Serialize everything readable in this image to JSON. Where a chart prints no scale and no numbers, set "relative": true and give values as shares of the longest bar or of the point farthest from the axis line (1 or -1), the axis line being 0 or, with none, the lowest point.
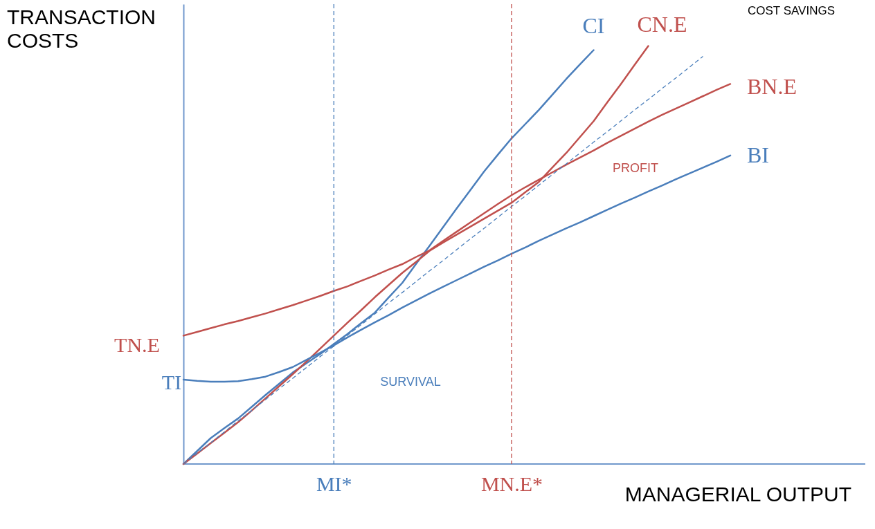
{
  "chart_data": {
    "type": "line",
    "relative": true,
    "xlabel": "MANAGERIAL OUTPUT",
    "ylabel": "TRANSACTION COSTS",
    "tick_labels": "x",
    "grid": false,
    "categories": [
      null,
      null,
      null,
      null,
      null,
      null,
      null,
      null,
      null,
      null,
      null,
      "MI*",
      null,
      null,
      null,
      null,
      null,
      null,
      null,
      null,
      null,
      null,
      null,
      null,
      "MN.E*",
      null,
      null,
      null,
      null,
      null,
      null,
      null,
      null,
      null,
      null,
      null,
      null,
      null,
      null,
      null,
      null
    ],
    "series": [
      {
        "name": "CI",
        "color": "#4a7ebb",
        "line_style": "solid",
        "values": [
          0,
          0.031,
          0.062,
          0.086,
          0.109,
          0.137,
          0.165,
          0.192,
          0.219,
          0.241,
          0.263,
          0.287,
          0.311,
          0.337,
          0.362,
          0.398,
          0.433,
          0.478,
          0.522,
          0.567,
          0.612,
          0.656,
          0.7,
          0.74,
          0.779,
          0.813,
          0.847,
          0.884,
          0.921,
          0.956,
          0.99,
          null,
          null,
          null,
          null,
          null,
          null,
          null,
          null,
          null,
          null
        ]
      },
      {
        "name": "CN.E",
        "color": "#c0504d",
        "line_style": "solid",
        "values": [
          0,
          0.025,
          0.05,
          0.075,
          0.1,
          0.128,
          0.157,
          0.186,
          0.215,
          0.245,
          0.276,
          0.307,
          0.338,
          0.368,
          0.399,
          0.428,
          0.457,
          0.483,
          0.51,
          0.53,
          0.549,
          0.568,
          0.587,
          0.606,
          0.625,
          0.65,
          0.675,
          0.71,
          0.744,
          0.782,
          0.82,
          0.865,
          0.909,
          0.955,
          1.0,
          null,
          null,
          null,
          null,
          null,
          null
        ]
      },
      {
        "name": "BN.E",
        "color": "#c0504d",
        "line_style": "solid",
        "values": [
          0.307,
          0.316,
          0.325,
          0.334,
          0.342,
          0.351,
          0.36,
          0.37,
          0.38,
          0.391,
          0.402,
          0.414,
          0.425,
          0.438,
          0.451,
          0.465,
          0.478,
          0.495,
          0.511,
          0.534,
          0.556,
          0.578,
          0.6,
          0.622,
          0.643,
          0.662,
          0.68,
          0.698,
          0.716,
          0.733,
          0.75,
          0.768,
          0.785,
          0.802,
          0.819,
          0.835,
          0.85,
          0.865,
          0.88,
          0.895,
          0.909
        ]
      },
      {
        "name": "BI",
        "color": "#4a7ebb",
        "line_style": "solid",
        "values": [
          0.202,
          0.199,
          0.197,
          0.197,
          0.198,
          0.203,
          0.209,
          0.22,
          0.232,
          0.249,
          0.266,
          0.284,
          0.303,
          0.321,
          0.339,
          0.356,
          0.374,
          0.391,
          0.408,
          0.424,
          0.44,
          0.456,
          0.472,
          0.487,
          0.503,
          0.518,
          0.534,
          0.549,
          0.564,
          0.578,
          0.593,
          0.608,
          0.623,
          0.637,
          0.652,
          0.666,
          0.681,
          0.695,
          0.709,
          0.723,
          0.738
        ]
      },
      {
        "color": "#4a7ebb",
        "line_style": "dashed",
        "values": [
          0,
          0.026,
          0.051,
          0.077,
          0.103,
          0.128,
          0.154,
          0.18,
          0.205,
          0.231,
          0.257,
          0.282,
          0.308,
          0.333,
          0.359,
          0.385,
          0.41,
          0.436,
          0.462,
          0.487,
          0.513,
          0.539,
          0.564,
          0.59,
          0.616,
          0.641,
          0.667,
          0.693,
          0.718,
          0.744,
          0.77,
          0.795,
          0.821,
          0.847,
          0.872,
          0.898,
          0.923,
          0.949,
          0.975,
          null,
          null
        ]
      }
    ],
    "ref_lines": [
      {
        "axis": "x",
        "value": "MI*",
        "color": "#4a7ebb",
        "line_style": "dashed"
      },
      {
        "axis": "x",
        "value": "MN.E*",
        "color": "#c0504d",
        "line_style": "dashed"
      }
    ],
    "annotations": [
      "TN.E",
      "TI",
      "COST SAVINGS",
      "PROFIT",
      "SURVIVAL"
    ]
  }
}
